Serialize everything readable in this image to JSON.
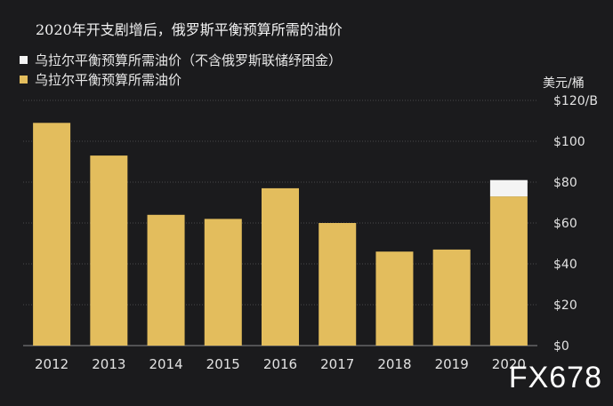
{
  "title": "2020年开支剧增后，俄罗斯平衡预算所需的油价",
  "unit": "美元/桶",
  "watermark": "FX678",
  "chart_data": {
    "type": "bar",
    "stacked": true,
    "categories": [
      "2012",
      "2013",
      "2014",
      "2015",
      "2016",
      "2017",
      "2018",
      "2019",
      "2020"
    ],
    "series": [
      {
        "name": "乌拉尔平衡预算所需油价",
        "color": "#e3bd5d",
        "values": [
          109,
          93,
          64,
          62,
          77,
          60,
          46,
          47,
          73
        ]
      },
      {
        "name": "乌拉尔平衡预算所需油价（不含俄罗斯联储纾困金）",
        "color": "#f4f4f4",
        "values": [
          0,
          0,
          0,
          0,
          0,
          0,
          0,
          0,
          8
        ]
      }
    ],
    "yticks": [
      "$0",
      "$20",
      "$40",
      "$60",
      "$80",
      "$100",
      "$120/B"
    ],
    "ylim": [
      0,
      120
    ],
    "grid": true,
    "legend": "top-left"
  }
}
